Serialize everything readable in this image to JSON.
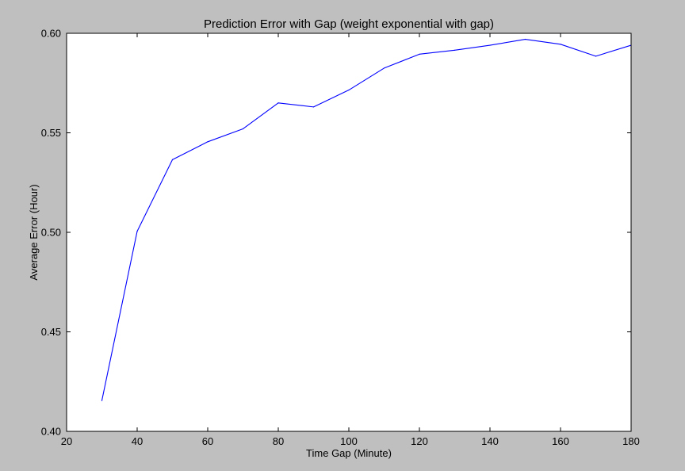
{
  "chart_data": {
    "type": "line",
    "title": "Prediction Error with Gap (weight exponential with gap)",
    "xlabel": "Time Gap (Minute)",
    "ylabel": "Average Error (Hour)",
    "xlim": [
      20,
      180
    ],
    "ylim": [
      0.4,
      0.6
    ],
    "xticks": [
      20,
      40,
      60,
      80,
      100,
      120,
      140,
      160,
      180
    ],
    "yticks": [
      0.4,
      0.45,
      0.5,
      0.55,
      0.6
    ],
    "xtick_labels": [
      "20",
      "40",
      "60",
      "80",
      "100",
      "120",
      "140",
      "160",
      "180"
    ],
    "ytick_labels": [
      "0.40",
      "0.45",
      "0.50",
      "0.55",
      "0.60"
    ],
    "grid": false,
    "legend": "none",
    "series": [
      {
        "color": "#0000ff",
        "x": [
          30,
          40,
          50,
          60,
          70,
          80,
          90,
          100,
          110,
          120,
          130,
          140,
          150,
          160,
          170,
          180
        ],
        "y": [
          0.4155,
          0.5005,
          0.5365,
          0.5455,
          0.552,
          0.565,
          0.563,
          0.5715,
          0.5825,
          0.5895,
          0.5915,
          0.594,
          0.597,
          0.5945,
          0.5885,
          0.594
        ]
      }
    ]
  },
  "colors": {
    "figure_background": "#bfbfbf",
    "plot_background": "#ffffff",
    "axes_edge": "#000000"
  }
}
